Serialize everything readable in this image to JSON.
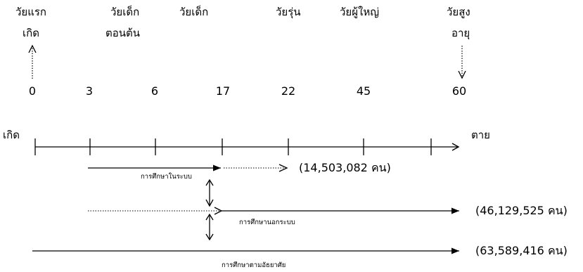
{
  "stages": [
    {
      "line1": "วัยแรก",
      "line2": "เกิด"
    },
    {
      "line1": "วัยเด็ก",
      "line2": "ตอนต้น"
    },
    {
      "line1": "วัยเด็ก",
      "line2": ""
    },
    {
      "line1": "วัยรุ่น",
      "line2": ""
    },
    {
      "line1": "วัยผู้ใหญ่",
      "line2": ""
    },
    {
      "line1": "วัยสูง",
      "line2": "อายุ"
    }
  ],
  "ages": [
    "0",
    "3",
    "6",
    "17",
    "22",
    "45",
    "60"
  ],
  "timeline": {
    "start_label": "เกิด",
    "end_label": "ตาย"
  },
  "education": {
    "formal": {
      "label": "การศึกษาในระบบ",
      "count": "(14,503,082 คน)"
    },
    "nonformal": {
      "label": "การศึกษานอกระบบ",
      "count": "(46,129,525 คน)"
    },
    "informal": {
      "label": "การศึกษาตามอัธยาศัย",
      "count": "(63,589,416 คน)"
    }
  }
}
